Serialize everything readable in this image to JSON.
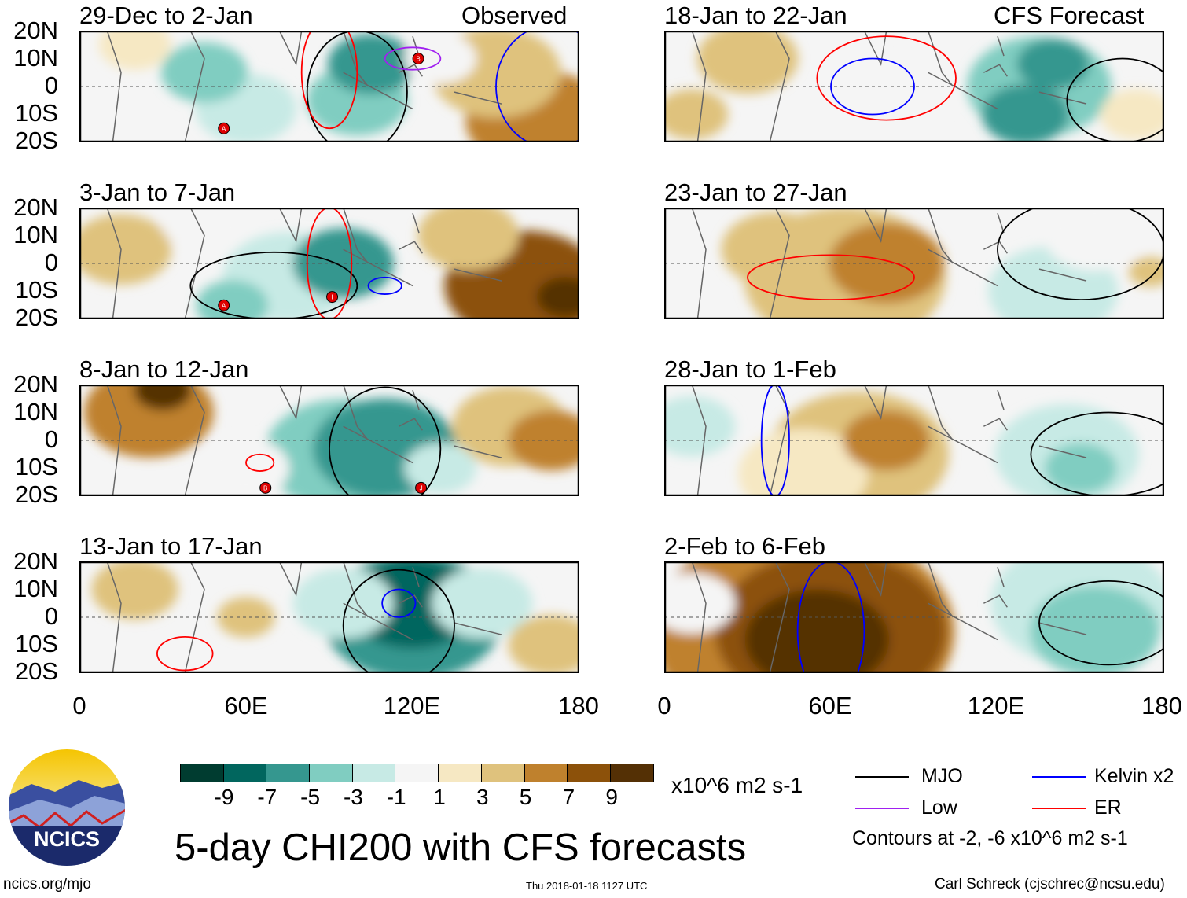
{
  "header": {
    "left_label": "Observed",
    "right_label": "CFS Forecast"
  },
  "panels": [
    {
      "title": "29-Dec to 2-Jan",
      "column": "left",
      "row": 0,
      "anomalies": [
        [
          45,
          5,
          -5,
          12
        ],
        [
          60,
          -8,
          -3,
          14
        ],
        [
          105,
          8,
          -7,
          12
        ],
        [
          100,
          -5,
          -5,
          14
        ],
        [
          20,
          15,
          1,
          10
        ],
        [
          165,
          -12,
          5,
          20
        ],
        [
          150,
          5,
          3,
          18
        ],
        [
          130,
          10,
          -1,
          10
        ]
      ],
      "contours": [
        [
          "MJO",
          100,
          -2,
          18,
          22
        ],
        [
          "Kelvin",
          170,
          0,
          20,
          22
        ],
        [
          "ER",
          90,
          5,
          10,
          20
        ],
        [
          "Low",
          120,
          10,
          10,
          4
        ]
      ],
      "cyclones": [
        {
          "label": "A",
          "lon": 52,
          "lat": -15
        },
        {
          "label": "B",
          "lon": 122,
          "lat": 10
        }
      ]
    },
    {
      "title": "3-Jan to 7-Jan",
      "column": "left",
      "row": 1,
      "anomalies": [
        [
          15,
          5,
          3,
          14
        ],
        [
          160,
          -8,
          7,
          22
        ],
        [
          175,
          -12,
          9,
          8
        ],
        [
          95,
          0,
          -7,
          14
        ],
        [
          55,
          -15,
          -5,
          10
        ],
        [
          75,
          -5,
          -3,
          18
        ],
        [
          45,
          15,
          -1,
          12
        ],
        [
          140,
          10,
          3,
          14
        ]
      ],
      "contours": [
        [
          "MJO",
          70,
          -8,
          30,
          12
        ],
        [
          "Kelvin",
          110,
          -8,
          6,
          3
        ],
        [
          "ER",
          90,
          0,
          8,
          20
        ]
      ],
      "cyclones": [
        {
          "label": "A",
          "lon": 52,
          "lat": -15
        },
        {
          "label": "I",
          "lon": 91,
          "lat": -12
        }
      ]
    },
    {
      "title": "8-Jan to 12-Jan",
      "column": "left",
      "row": 2,
      "anomalies": [
        [
          25,
          10,
          5,
          18
        ],
        [
          30,
          18,
          9,
          8
        ],
        [
          110,
          -3,
          -7,
          20
        ],
        [
          95,
          -5,
          -5,
          22
        ],
        [
          130,
          -10,
          -3,
          10
        ],
        [
          170,
          0,
          5,
          12
        ],
        [
          155,
          5,
          3,
          16
        ],
        [
          60,
          -10,
          -1,
          12
        ]
      ],
      "contours": [
        [
          "MJO",
          110,
          -3,
          20,
          22
        ],
        [
          "ER",
          65,
          -8,
          5,
          3
        ]
      ],
      "cyclones": [
        {
          "label": "B",
          "lon": 67,
          "lat": -17
        },
        {
          "label": "J",
          "lon": 123,
          "lat": -17
        }
      ]
    },
    {
      "title": "13-Jan to 17-Jan",
      "column": "left",
      "row": 3,
      "anomalies": [
        [
          120,
          5,
          -9,
          18
        ],
        [
          120,
          0,
          -7,
          25
        ],
        [
          95,
          5,
          -3,
          14
        ],
        [
          145,
          5,
          -3,
          14
        ],
        [
          60,
          0,
          3,
          8
        ],
        [
          20,
          10,
          3,
          12
        ],
        [
          170,
          -10,
          3,
          12
        ]
      ],
      "contours": [
        [
          "MJO",
          115,
          -3,
          20,
          20
        ],
        [
          "Kelvin",
          115,
          5,
          6,
          5
        ],
        [
          "ER",
          38,
          -13,
          10,
          6
        ]
      ],
      "cyclones": []
    },
    {
      "title": "18-Jan to 22-Jan",
      "column": "right",
      "row": 0,
      "anomalies": [
        [
          140,
          8,
          -7,
          10
        ],
        [
          135,
          0,
          -5,
          20
        ],
        [
          130,
          -10,
          -7,
          12
        ],
        [
          30,
          10,
          3,
          14
        ],
        [
          10,
          -10,
          3,
          10
        ],
        [
          85,
          -3,
          -1,
          14
        ],
        [
          170,
          -10,
          1,
          10
        ]
      ],
      "contours": [
        [
          "ER",
          80,
          3,
          25,
          15
        ],
        [
          "Kelvin",
          75,
          0,
          15,
          10
        ],
        [
          "MJO",
          165,
          -5,
          20,
          15
        ]
      ],
      "cyclones": []
    },
    {
      "title": "23-Jan to 27-Jan",
      "column": "right",
      "row": 1,
      "anomalies": [
        [
          80,
          0,
          5,
          16
        ],
        [
          65,
          -5,
          3,
          28
        ],
        [
          40,
          5,
          3,
          15
        ],
        [
          140,
          -10,
          -3,
          18
        ],
        [
          155,
          10,
          -1,
          14
        ],
        [
          175,
          -3,
          3,
          6
        ]
      ],
      "contours": [
        [
          "MJO",
          150,
          5,
          30,
          18
        ],
        [
          "ER",
          60,
          -5,
          30,
          8
        ]
      ],
      "cyclones": []
    },
    {
      "title": "28-Jan to 1-Feb",
      "column": "right",
      "row": 2,
      "anomalies": [
        [
          80,
          0,
          5,
          12
        ],
        [
          70,
          -5,
          3,
          25
        ],
        [
          50,
          -12,
          1,
          18
        ],
        [
          150,
          -10,
          -5,
          10
        ],
        [
          145,
          -5,
          -3,
          20
        ],
        [
          10,
          5,
          -3,
          12
        ]
      ],
      "contours": [
        [
          "MJO",
          160,
          -5,
          28,
          15
        ],
        [
          "Kelvin",
          40,
          0,
          5,
          20
        ]
      ],
      "cyclones": []
    },
    {
      "title": "2-Feb to 6-Feb",
      "column": "right",
      "row": 3,
      "anomalies": [
        [
          55,
          -8,
          9,
          20
        ],
        [
          60,
          -5,
          7,
          32
        ],
        [
          50,
          -5,
          5,
          42
        ],
        [
          155,
          -5,
          -5,
          18
        ],
        [
          150,
          5,
          -3,
          25
        ],
        [
          10,
          5,
          -1,
          12
        ]
      ],
      "contours": [
        [
          "MJO",
          160,
          -2,
          25,
          15
        ],
        [
          "Kelvin",
          60,
          -5,
          12,
          25
        ]
      ],
      "cyclones": []
    }
  ],
  "axes": {
    "y_ticks": [
      "20N",
      "10N",
      "0",
      "10S",
      "20S"
    ],
    "x_ticks": [
      "0",
      "60E",
      "120E",
      "180"
    ],
    "lon_range": [
      0,
      180
    ],
    "lat_range": [
      -20,
      20
    ]
  },
  "colorbar": {
    "levels": [
      "-9",
      "-7",
      "-5",
      "-3",
      "-1",
      "1",
      "3",
      "5",
      "7",
      "9"
    ],
    "colors": [
      "#003c30",
      "#01665e",
      "#35978f",
      "#80cdc1",
      "#c7eae5",
      "#f5f5f5",
      "#f6e8c3",
      "#dfc27d",
      "#bf812d",
      "#8c510a",
      "#543005"
    ],
    "units": "x10^6 m2 s-1"
  },
  "legend": {
    "items": [
      {
        "label": "MJO",
        "color": "#000000"
      },
      {
        "label": "Kelvin x2",
        "color": "#0000ff"
      },
      {
        "label": "Low",
        "color": "#a020f0"
      },
      {
        "label": "ER",
        "color": "#ff0000"
      }
    ],
    "note": "Contours at -2, -6 x10^6 m2 s-1"
  },
  "footer": {
    "title": "5-day CHI200 with CFS forecasts",
    "logo_text": "NCICS",
    "url": "ncics.org/mjo",
    "timestamp": "Thu 2018-01-18 1127 UTC",
    "credit": "Carl Schreck (cjschrec@ncsu.edu)"
  }
}
